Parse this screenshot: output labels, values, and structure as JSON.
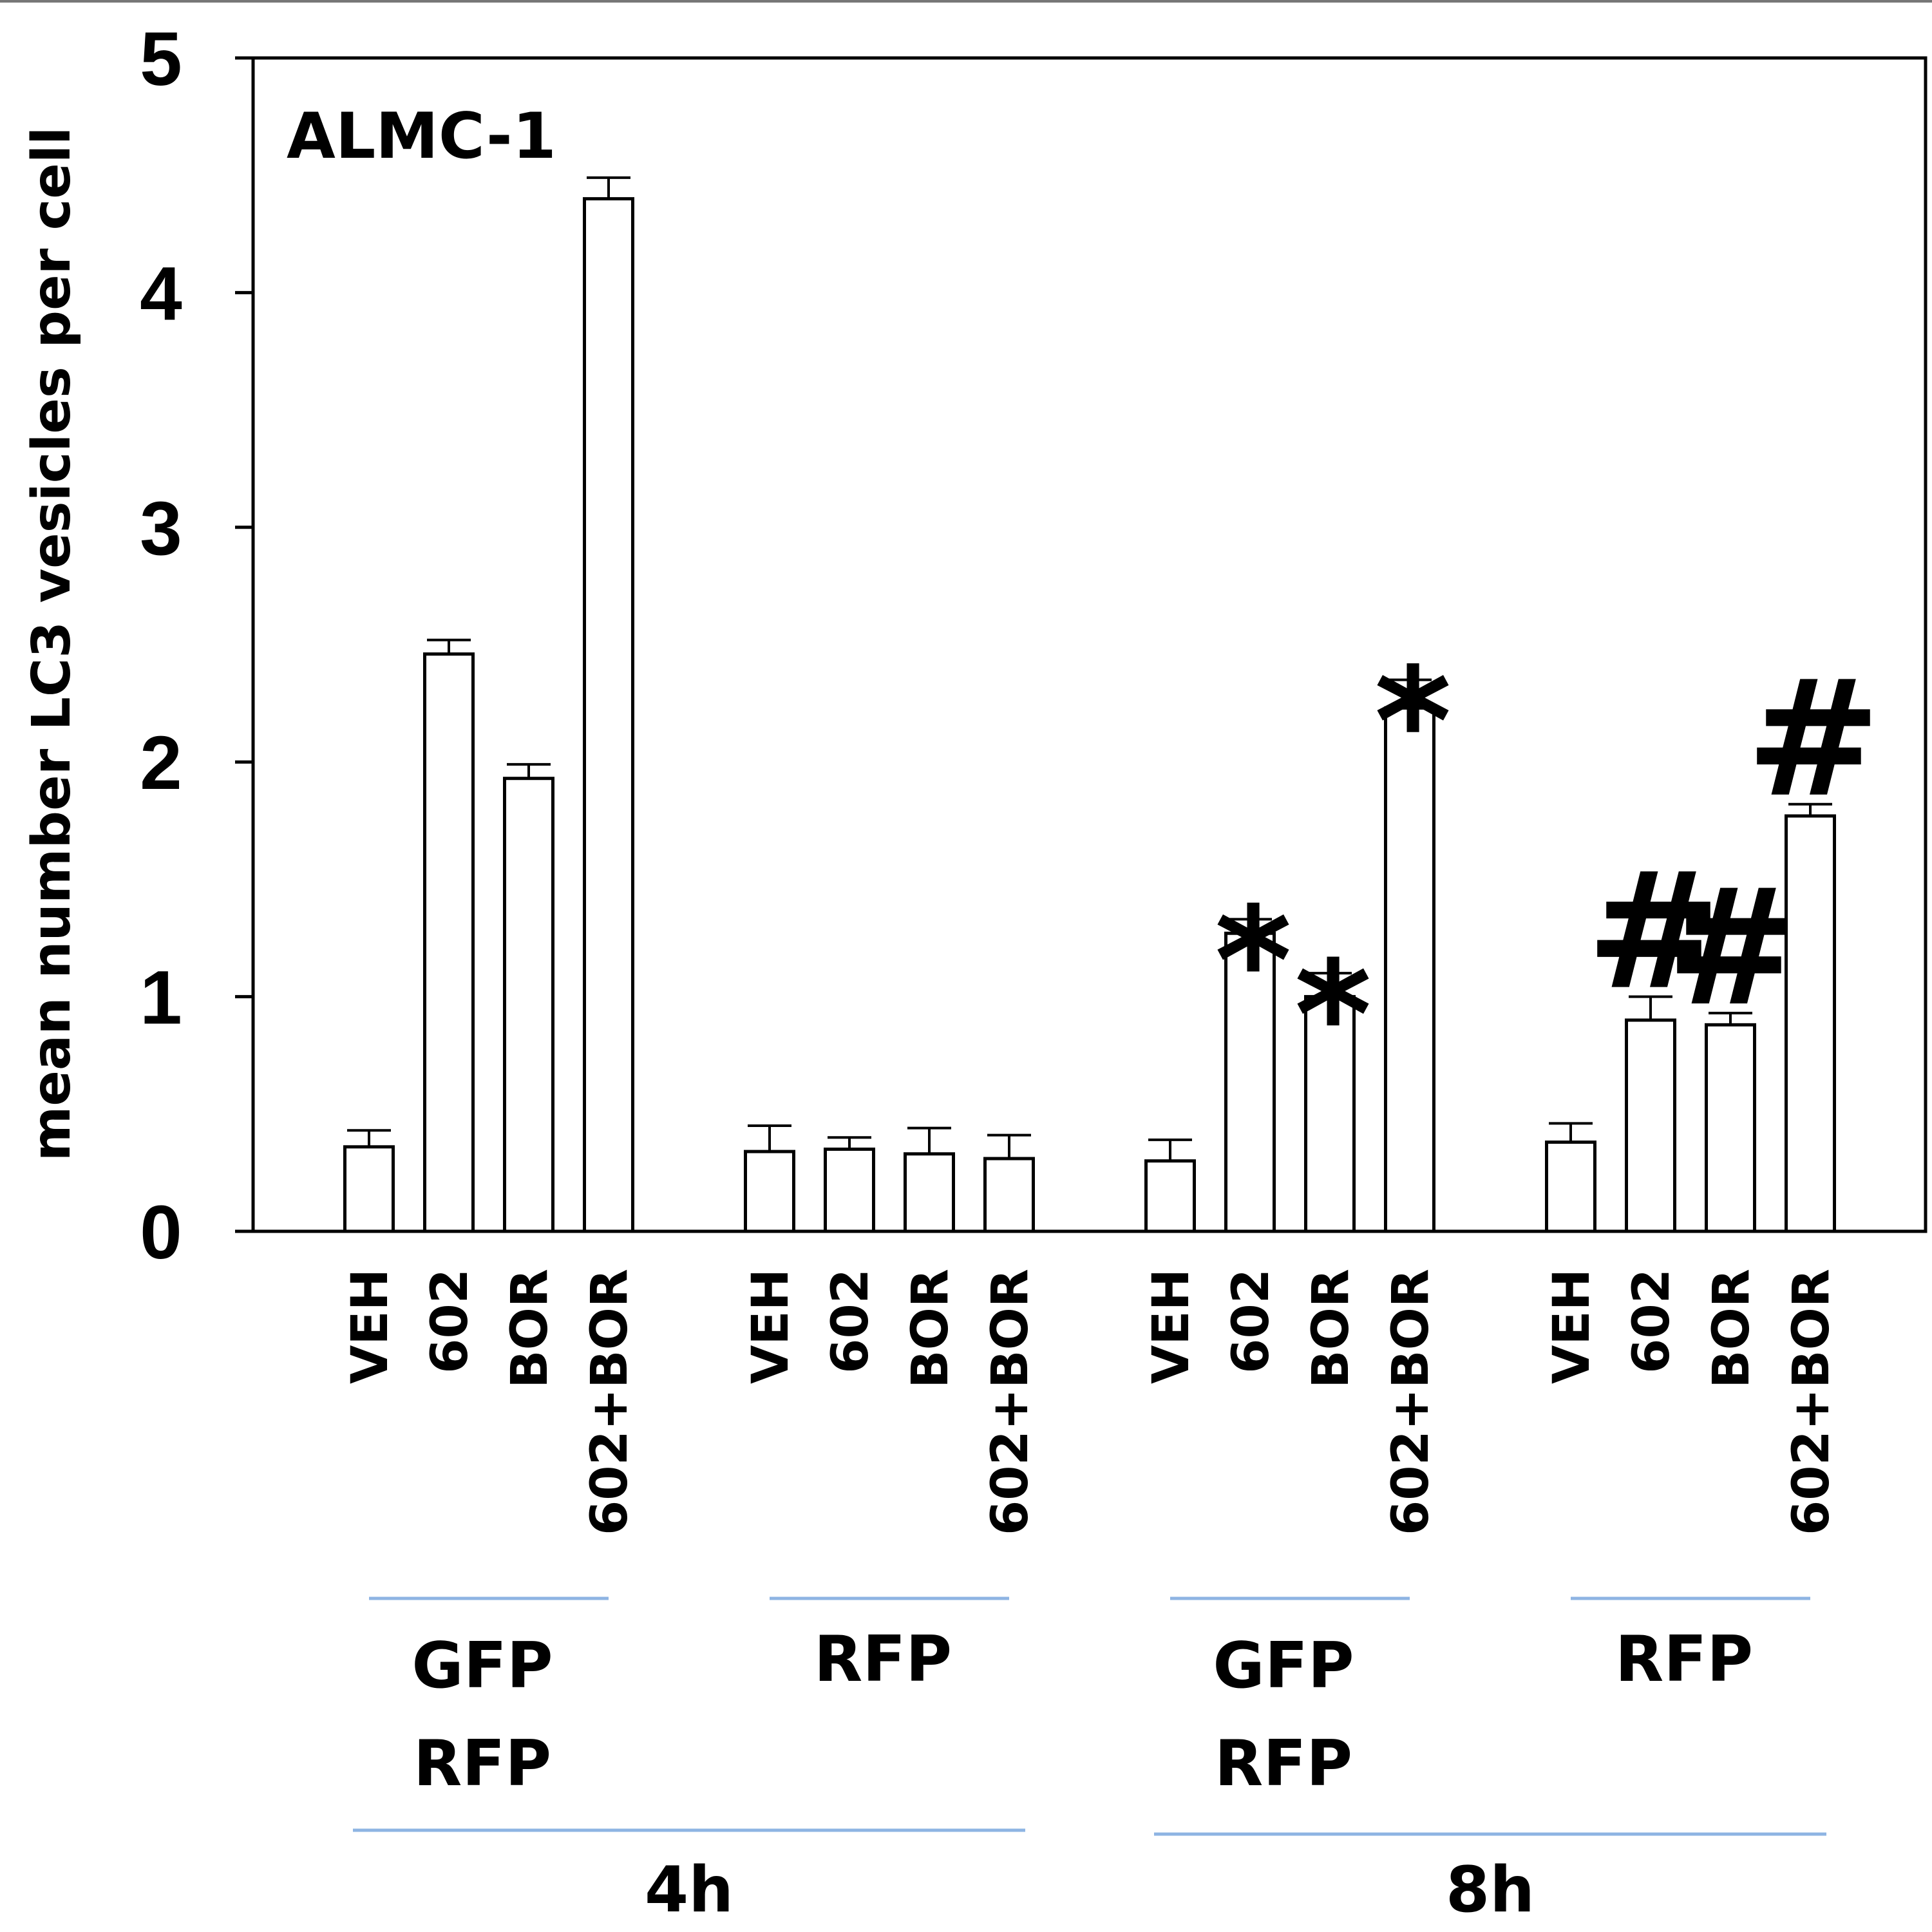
{
  "chart_data": {
    "type": "bar",
    "panel_label": "ALMC-1",
    "ylabel": "mean number LC3 vesicles per cell",
    "ylim": [
      0,
      5
    ],
    "yticks": [
      "0",
      "1",
      "2",
      "3",
      "4",
      "5"
    ],
    "bar_color": "#ffffff",
    "bar_edge_color": "#000000",
    "bracket_color": "#8eb4e3",
    "categories": [
      "VEH",
      "602",
      "BOR",
      "602+BOR",
      "VEH",
      "602",
      "BOR",
      "602+BOR",
      "VEH",
      "602",
      "BOR",
      "602+BOR",
      "VEH",
      "602",
      "BOR",
      "602+BOR"
    ],
    "values": [
      0.36,
      2.46,
      1.93,
      4.4,
      0.34,
      0.35,
      0.33,
      0.31,
      0.3,
      1.27,
      1.0,
      2.23,
      0.38,
      0.9,
      0.88,
      1.77
    ],
    "errors": [
      0.07,
      0.06,
      0.06,
      0.09,
      0.11,
      0.05,
      0.11,
      0.1,
      0.09,
      0.06,
      0.1,
      0.12,
      0.08,
      0.1,
      0.05,
      0.05
    ],
    "significance": [
      "",
      "",
      "",
      "",
      "",
      "",
      "",
      "",
      "",
      "*",
      "*",
      "*",
      "",
      "#",
      "#",
      "#"
    ],
    "reporter_groups": [
      {
        "lines": [
          "GFP",
          "RFP"
        ],
        "from": 0,
        "to": 3
      },
      {
        "lines": [
          "RFP"
        ],
        "from": 4,
        "to": 7
      },
      {
        "lines": [
          "GFP",
          "RFP"
        ],
        "from": 8,
        "to": 11
      },
      {
        "lines": [
          "RFP"
        ],
        "from": 12,
        "to": 15
      }
    ],
    "time_groups": [
      {
        "label": "4h",
        "from": 0,
        "to": 7
      },
      {
        "label": "8h",
        "from": 8,
        "to": 15
      }
    ]
  }
}
